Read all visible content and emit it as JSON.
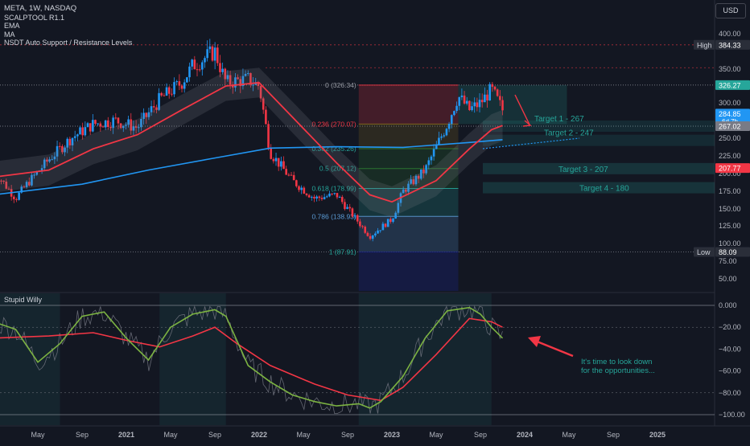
{
  "header": {
    "symbol_line": "META, 1W, NASDAQ",
    "indicators": [
      "SCALPTOOL R1.1",
      "EMA",
      "MA",
      "NSDT Auto Support / Resistance Levels"
    ],
    "currency": "USD"
  },
  "colors": {
    "background": "#131722",
    "up_candle": "#2196f3",
    "down_candle": "#f23645",
    "ema": "#f23645",
    "ma": "#2196f3",
    "targets": "#26a69a"
  },
  "chart_data": [
    {
      "type": "candlestick",
      "title": "META, 1W, NASDAQ",
      "ylim": [
        40,
        410
      ],
      "y_ticks": [
        "400.00",
        "350.00",
        "300.00",
        "250.00",
        "225.00",
        "200.00",
        "175.00",
        "150.00",
        "125.00",
        "100.00",
        "75.00",
        "50.00"
      ],
      "y_tick_values": [
        400,
        350,
        300,
        250,
        225,
        200,
        175,
        150,
        125,
        100,
        75,
        50
      ],
      "x_ticks": [
        "May",
        "Sep",
        "2021",
        "May",
        "Sep",
        "2022",
        "May",
        "Sep",
        "2023",
        "May",
        "Sep",
        "2024",
        "May",
        "Sep",
        "2025"
      ],
      "x_tick_dates": [
        "2020-05",
        "2020-09",
        "2021-01",
        "2021-05",
        "2021-09",
        "2022-01",
        "2022-05",
        "2022-09",
        "2023-01",
        "2023-05",
        "2023-09",
        "2024-01",
        "2024-05",
        "2024-09",
        "2025-01"
      ],
      "price_path": {
        "dates": [
          "2020-01",
          "2020-03",
          "2020-04",
          "2020-06",
          "2020-08",
          "2020-10",
          "2020-12",
          "2021-02",
          "2021-04",
          "2021-06",
          "2021-07",
          "2021-09",
          "2021-10",
          "2021-12",
          "2022-01",
          "2022-02",
          "2022-03",
          "2022-04",
          "2022-06",
          "2022-08",
          "2022-10",
          "2022-11",
          "2023-01",
          "2023-02",
          "2023-04",
          "2023-06",
          "2023-07",
          "2023-08",
          "2023-09",
          "2023-10",
          "2023-11"
        ],
        "close": [
          205,
          165,
          185,
          220,
          250,
          270,
          275,
          265,
          305,
          330,
          355,
          375,
          330,
          335,
          325,
          230,
          210,
          190,
          165,
          170,
          130,
          110,
          135,
          175,
          205,
          270,
          310,
          290,
          300,
          320,
          290
        ]
      },
      "ema": {
        "name": "EMA",
        "dates": [
          "2020-01",
          "2020-06",
          "2020-10",
          "2021-02",
          "2021-06",
          "2021-10",
          "2022-01",
          "2022-04",
          "2022-08",
          "2022-11",
          "2023-01",
          "2023-05",
          "2023-08",
          "2023-10",
          "2023-11"
        ],
        "values": [
          195,
          205,
          235,
          255,
          290,
          325,
          330,
          280,
          215,
          170,
          160,
          190,
          235,
          262,
          268
        ]
      },
      "ma": {
        "name": "MA",
        "dates": [
          "2020-01",
          "2020-09",
          "2021-03",
          "2021-09",
          "2022-02",
          "2022-08",
          "2023-02",
          "2023-08",
          "2023-11"
        ],
        "values": [
          170,
          185,
          205,
          222,
          236,
          238,
          237,
          244,
          248
        ]
      },
      "fibonacci": [
        {
          "label": "0 (326.34)",
          "value": 326.34
        },
        {
          "label": "0.236 (270.07)",
          "value": 270.07
        },
        {
          "label": "0.382 (235.26)",
          "value": 235.26
        },
        {
          "label": "0.5 (207.12)",
          "value": 207.12
        },
        {
          "label": "0.618 (178.99)",
          "value": 178.99
        },
        {
          "label": "0.786 (138.93)",
          "value": 138.93
        },
        {
          "label": "1 (87.91)",
          "value": 87.91
        }
      ],
      "fib_window": {
        "start": "2022-10",
        "end": "2023-07"
      },
      "targets": [
        {
          "label": "Target 1 - 267",
          "value": 267
        },
        {
          "label": "Target 2 - 247",
          "value": 247
        },
        {
          "label": "Target 3 - 207",
          "value": 207
        },
        {
          "label": "Target 4 - 180",
          "value": 180
        }
      ],
      "price_labels": [
        {
          "text": "384.33",
          "tag": "High",
          "value": 384.33
        },
        {
          "text": "326.27",
          "tag": "",
          "value": 326.27
        },
        {
          "text": "284.85",
          "sub": "6d 7h",
          "tag": "",
          "value": 284.85
        },
        {
          "text": "267.02",
          "tag": "",
          "value": 267.02
        },
        {
          "text": "207.77",
          "tag": "",
          "value": 207.77
        },
        {
          "text": "88.09",
          "tag": "Low",
          "value": 88.09
        }
      ]
    },
    {
      "type": "line",
      "title": "Stupid Willy",
      "ylim": [
        -105,
        5
      ],
      "y_ticks": [
        "0.000",
        "−20.00",
        "−40.00",
        "−60.00",
        "−80.00",
        "−100.00"
      ],
      "y_tick_values": [
        0,
        -20,
        -40,
        -60,
        -80,
        -100
      ],
      "fast_line": {
        "dates": [
          "2020-01",
          "2020-03",
          "2020-05",
          "2020-07",
          "2020-09",
          "2020-11",
          "2021-01",
          "2021-03",
          "2021-05",
          "2021-07",
          "2021-09",
          "2021-10",
          "2021-12",
          "2022-02",
          "2022-04",
          "2022-06",
          "2022-08",
          "2022-10",
          "2022-11",
          "2022-12",
          "2023-02",
          "2023-04",
          "2023-06",
          "2023-08",
          "2023-09",
          "2023-10",
          "2023-11"
        ],
        "values": [
          -15,
          -22,
          -52,
          -35,
          -10,
          -6,
          -30,
          -50,
          -20,
          -8,
          -4,
          -10,
          -55,
          -70,
          -82,
          -88,
          -92,
          -90,
          -94,
          -88,
          -65,
          -30,
          -5,
          -2,
          -8,
          -20,
          -30
        ]
      },
      "slow_line": {
        "dates": [
          "2020-01",
          "2020-06",
          "2020-10",
          "2021-01",
          "2021-04",
          "2021-07",
          "2021-09",
          "2021-11",
          "2022-02",
          "2022-06",
          "2022-09",
          "2022-12",
          "2023-02",
          "2023-05",
          "2023-08",
          "2023-10",
          "2023-11"
        ],
        "values": [
          -30,
          -28,
          -25,
          -32,
          -38,
          -28,
          -20,
          -35,
          -55,
          -72,
          -82,
          -87,
          -75,
          -45,
          -12,
          -15,
          -20
        ]
      },
      "annotation": "It's time to look down for the opportunities..."
    }
  ]
}
